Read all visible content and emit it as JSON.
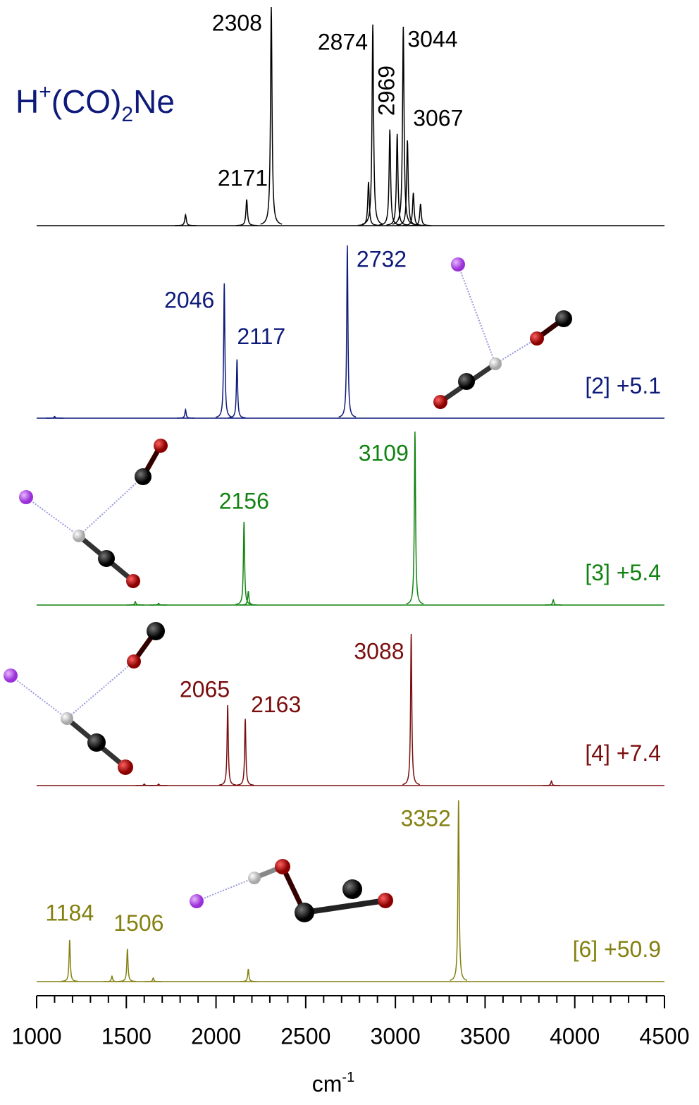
{
  "chart_data": {
    "type": "stacked-spectra",
    "title": [
      "H",
      "+",
      "(CO)",
      "2",
      "Ne"
    ],
    "title_color": "#0d1a7a",
    "x_label": "cm",
    "x_label_sup": "-1",
    "xlim": [
      1000,
      4500
    ],
    "xticks": [
      1000,
      1500,
      2000,
      2500,
      3000,
      3500,
      4000,
      4500
    ],
    "xminorticks": [
      1100,
      1200,
      1300,
      1400,
      1600,
      1700,
      1800,
      1900,
      2100,
      2200,
      2300,
      2400,
      2600,
      2700,
      2800,
      2900,
      3100,
      3200,
      3300,
      3400,
      3600,
      3700,
      3800,
      3900,
      4100,
      4200,
      4300,
      4400
    ],
    "series": [
      {
        "color": "#000000",
        "width": 5,
        "peaks": {
          "positions": [
            2171,
            2308,
            2874,
            2969,
            3044,
            3067
          ],
          "intensities": [
            0.12,
            1.0,
            0.92,
            0.44,
            0.91,
            0.39
          ]
        },
        "minor_peaks": {
          "positions": [
            1830,
            2850,
            3010,
            3100,
            3140
          ],
          "intensities": [
            0.05,
            0.2,
            0.42,
            0.15,
            0.1
          ]
        }
      },
      {
        "name": "[2] +5.1",
        "color": "#0d1a7a",
        "width": 4,
        "peaks": {
          "positions": [
            2046,
            2117,
            2732
          ],
          "intensities": [
            0.78,
            0.34,
            1.0
          ]
        },
        "minor_peaks": {
          "positions": [
            1100,
            1830
          ],
          "intensities": [
            0.01,
            0.05
          ]
        }
      },
      {
        "name": "[3] +5.4",
        "color": "#128312",
        "width": 4,
        "peaks": {
          "positions": [
            2156,
            3109
          ],
          "intensities": [
            0.48,
            1.0
          ]
        },
        "minor_peaks": {
          "positions": [
            1550,
            1680,
            2180,
            3880
          ],
          "intensities": [
            0.02,
            0.01,
            0.08,
            0.03
          ]
        }
      },
      {
        "name": "[4] +7.4",
        "color": "#7a0d0d",
        "width": 4,
        "peaks": {
          "positions": [
            2065,
            2163,
            3088
          ],
          "intensities": [
            0.53,
            0.44,
            1.0
          ]
        },
        "minor_peaks": {
          "positions": [
            1600,
            1680,
            3870
          ],
          "intensities": [
            0.01,
            0.01,
            0.03
          ]
        }
      },
      {
        "name": "[6] +50.9",
        "color": "#848010",
        "width": 4,
        "peaks": {
          "positions": [
            1184,
            1506,
            3352
          ],
          "intensities": [
            0.23,
            0.18,
            1.0
          ]
        },
        "minor_peaks": {
          "positions": [
            1420,
            1650,
            2180
          ],
          "intensities": [
            0.03,
            0.02,
            0.07
          ]
        }
      }
    ]
  }
}
